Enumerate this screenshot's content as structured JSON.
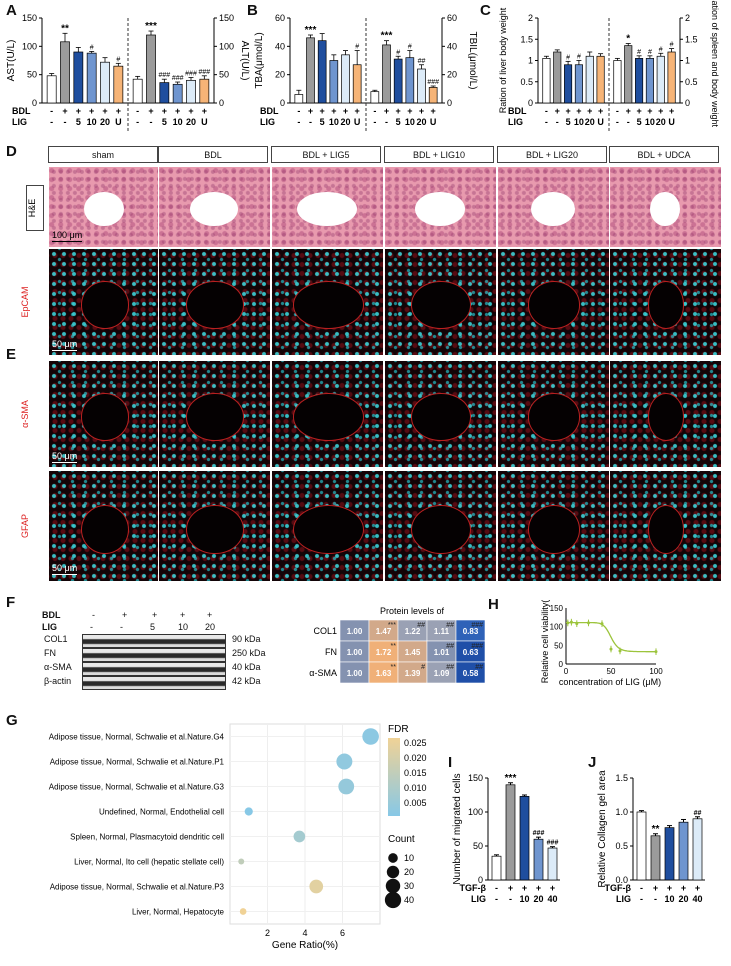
{
  "panels": {
    "A": "A",
    "B": "B",
    "C": "C",
    "D": "D",
    "E": "E",
    "F": "F",
    "G": "G",
    "H": "H",
    "I": "I",
    "J": "J"
  },
  "treatment": {
    "bdl_label": "BDL",
    "lig_label": "LIG",
    "bdl_row": [
      "-",
      "+",
      "+",
      "+",
      "+",
      "+"
    ],
    "lig_row": [
      "-",
      "-",
      "5",
      "10",
      "20",
      "U"
    ]
  },
  "colors": {
    "sham": "#ffffff",
    "bdl": "#9b9b9b",
    "lig5": "#1f4e9e",
    "lig10": "#6f95cf",
    "lig20": "#dcebf8",
    "udca": "#f6b477",
    "lig_curve": "#9cc43c"
  },
  "chart_data": [
    {
      "id": "A",
      "type": "bar",
      "left_axis": {
        "label": "AST(U/L)",
        "ylim": [
          0,
          150
        ],
        "ticks": [
          0,
          50,
          100,
          150
        ]
      },
      "right_axis": {
        "label": "ALT(U/L)",
        "ylim": [
          0,
          150
        ],
        "ticks": [
          0,
          50,
          100,
          150
        ]
      },
      "series": [
        {
          "name": "AST",
          "values": [
            48,
            108,
            90,
            88,
            72,
            65
          ],
          "errors": [
            4,
            15,
            8,
            3,
            8,
            5
          ],
          "marks": [
            "",
            "**",
            "",
            "#",
            "",
            "#"
          ]
        },
        {
          "name": "ALT",
          "values": [
            42,
            120,
            36,
            33,
            40,
            42
          ],
          "errors": [
            5,
            7,
            6,
            4,
            5,
            6
          ],
          "marks": [
            "",
            "***",
            "###",
            "###",
            "###",
            "###"
          ]
        }
      ]
    },
    {
      "id": "B",
      "type": "bar",
      "left_axis": {
        "label": "TBA(μmol/L)",
        "ylim": [
          0,
          60
        ],
        "ticks": [
          0,
          20,
          40,
          60
        ]
      },
      "right_axis": {
        "label": "TBIL(μmol/L)",
        "ylim": [
          0,
          60
        ],
        "ticks": [
          0,
          20,
          40,
          60
        ]
      },
      "series": [
        {
          "name": "TBA",
          "values": [
            6,
            46,
            44,
            30,
            34,
            27
          ],
          "errors": [
            3,
            2,
            5,
            4,
            3,
            10
          ],
          "marks": [
            "",
            "***",
            "",
            "",
            "",
            "#"
          ]
        },
        {
          "name": "TBIL",
          "values": [
            8,
            41,
            31,
            32,
            24,
            11
          ],
          "errors": [
            1,
            3,
            2,
            5,
            3,
            1
          ],
          "marks": [
            "",
            "***",
            "#",
            "#",
            "##",
            "###"
          ]
        }
      ]
    },
    {
      "id": "C",
      "type": "bar",
      "left_axis": {
        "label": "Ration of liver body weight",
        "ylim": [
          0,
          2.0
        ],
        "ticks": [
          0.0,
          0.5,
          1.0,
          1.5,
          2.0
        ]
      },
      "right_axis": {
        "label": "Ration of spleen and body weight",
        "ylim": [
          0,
          2.0
        ],
        "ticks": [
          0.0,
          0.5,
          1.0,
          1.5,
          2.0
        ]
      },
      "series": [
        {
          "name": "Liver",
          "values": [
            1.05,
            1.2,
            0.9,
            0.9,
            1.1,
            1.1
          ],
          "errors": [
            0.05,
            0.05,
            0.08,
            0.1,
            0.1,
            0.06
          ],
          "marks": [
            "",
            "",
            "#",
            "#",
            "",
            ""
          ]
        },
        {
          "name": "Spleen",
          "values": [
            1.0,
            1.35,
            1.05,
            1.05,
            1.1,
            1.2
          ],
          "errors": [
            0.05,
            0.05,
            0.06,
            0.06,
            0.07,
            0.08
          ],
          "marks": [
            "",
            "*",
            "#",
            "#",
            "#",
            "#"
          ]
        }
      ]
    },
    {
      "id": "F_heatmap",
      "type": "heatmap",
      "title": "Protein levels of",
      "rows": [
        "COL1",
        "FN",
        "α-SMA"
      ],
      "values": [
        [
          1.0,
          1.47,
          1.22,
          1.11,
          0.83
        ],
        [
          1.0,
          1.72,
          1.45,
          1.01,
          0.63
        ],
        [
          1.0,
          1.63,
          1.39,
          1.09,
          0.58
        ]
      ],
      "marks": [
        [
          "",
          "***",
          "##",
          "##",
          "###"
        ],
        [
          "",
          "**",
          "",
          "##",
          "###"
        ],
        [
          "",
          "**",
          "#",
          "##",
          "##"
        ]
      ]
    },
    {
      "id": "H",
      "type": "line",
      "xlabel": "concentration of LIG (μM)",
      "ylabel": "Relative cell viability(%)",
      "xlim": [
        0,
        100
      ],
      "ylim": [
        0,
        150
      ],
      "xticks": [
        0,
        50,
        100
      ],
      "yticks": [
        0,
        50,
        100,
        150
      ],
      "x": [
        2,
        6,
        12,
        25,
        40,
        50,
        60,
        100
      ],
      "y": [
        110,
        112,
        108,
        110,
        108,
        40,
        35,
        33
      ]
    },
    {
      "id": "G",
      "type": "scatter",
      "xlabel": "Gene Ratio(%)",
      "xlim": [
        0,
        8
      ],
      "xticks": [
        2,
        4,
        6
      ],
      "categories": [
        "Adipose tissue, Normal, Schwalie et al.Nature.G4",
        "Adipose tissue, Normal, Schwalie et al.Nature.P1",
        "Adipose tissue, Normal, Schwalie et al.Nature.G3",
        "Undefined, Normal, Endothelial cell",
        "Spleen, Normal, Plasmacytoid dendritic cell",
        "Liver, Normal, Ito cell (hepatic stellate cell)",
        "Adipose tissue, Normal, Schwalie et al.Nature.P3",
        "Liver, Normal, Hepatocyte"
      ],
      "gene_ratio": [
        7.5,
        6.1,
        6.2,
        1.0,
        3.7,
        0.6,
        4.6,
        0.7
      ],
      "count": [
        42,
        38,
        37,
        6,
        17,
        2,
        26,
        3
      ],
      "fdr": [
        0.004,
        0.005,
        0.006,
        0.003,
        0.009,
        0.015,
        0.022,
        0.025
      ],
      "legend": {
        "fdr_title": "FDR",
        "fdr_ticks": [
          "0.025",
          "0.020",
          "0.015",
          "0.010",
          "0.005"
        ],
        "count_title": "Count",
        "count_ticks": [
          "10",
          "20",
          "30",
          "40"
        ]
      }
    },
    {
      "id": "I",
      "type": "bar",
      "ylabel": "Number of migrated cells",
      "ylim": [
        0,
        150
      ],
      "yticks": [
        0,
        50,
        100,
        150
      ],
      "categories": [
        "-",
        "+ -",
        "+ 10",
        "+ 20",
        "+ 40"
      ],
      "values": [
        35,
        140,
        123,
        60,
        47
      ],
      "errors": [
        2,
        3,
        2,
        3,
        2
      ],
      "marks": [
        "",
        "***",
        "",
        "###",
        "###"
      ]
    },
    {
      "id": "J",
      "type": "bar",
      "ylabel": "Relative Collagen gel area",
      "ylim": [
        0,
        1.5
      ],
      "yticks": [
        0.0,
        0.5,
        1.0,
        1.5
      ],
      "categories": [
        "-",
        "+ -",
        "+ 10",
        "+ 20",
        "+ 40"
      ],
      "values": [
        1.0,
        0.65,
        0.77,
        0.85,
        0.9
      ],
      "errors": [
        0.02,
        0.03,
        0.03,
        0.04,
        0.03
      ],
      "marks": [
        "",
        "**",
        "",
        "",
        "##"
      ]
    }
  ],
  "micrographs": {
    "columns": [
      "sham",
      "BDL",
      "BDL + LIG5",
      "BDL + LIG10",
      "BDL + LIG20",
      "BDL + UDCA"
    ],
    "rows": [
      "H&E",
      "EpCAM",
      "α-SMA",
      "GFAP"
    ],
    "scale_he": "100 μm",
    "scale_fl": "50 μm"
  },
  "western": {
    "bdl_row": [
      "-",
      "+",
      "+",
      "+",
      "+"
    ],
    "lig_row": [
      "-",
      "-",
      "5",
      "10",
      "20"
    ],
    "proteins": [
      {
        "name": "COL1",
        "kda": "90 kDa"
      },
      {
        "name": "FN",
        "kda": "250 kDa"
      },
      {
        "name": "α-SMA",
        "kda": "40 kDa"
      },
      {
        "name": "β-actin",
        "kda": "42 kDa"
      }
    ]
  },
  "treatment_ij": {
    "tgf_label": "TGF-β",
    "lig_label": "LIG",
    "tgf_row": [
      "-",
      "+",
      "+",
      "+",
      "+"
    ],
    "lig_row": [
      "-",
      "-",
      "10",
      "20",
      "40"
    ]
  }
}
